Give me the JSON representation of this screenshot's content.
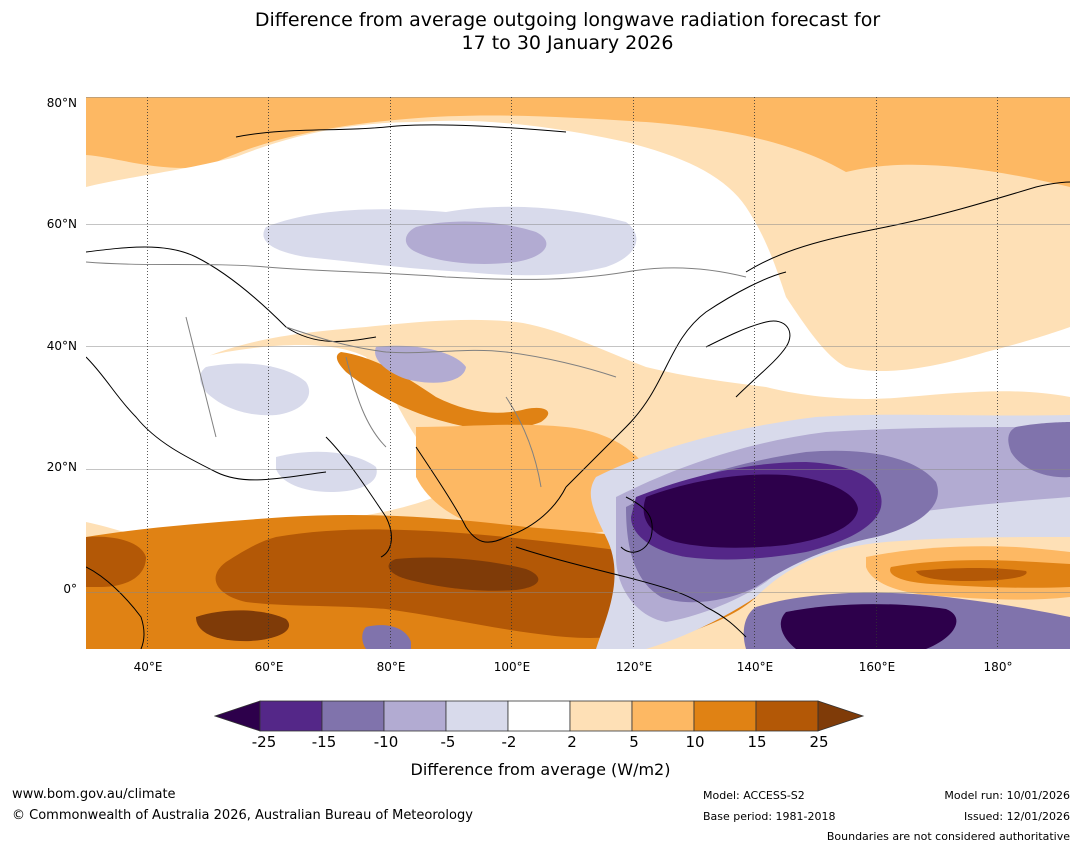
{
  "title": {
    "line1": "Difference from average outgoing longwave radiation forecast for",
    "line2": "17 to 30 January 2026"
  },
  "map": {
    "lat_labels": [
      "80°N",
      "60°N",
      "40°N",
      "20°N",
      "0°"
    ],
    "lon_labels": [
      "40°E",
      "60°E",
      "80°E",
      "100°E",
      "120°E",
      "140°E",
      "160°E",
      "180°"
    ],
    "lat_range": [
      -10,
      80
    ],
    "lon_range": [
      30,
      192
    ],
    "land_color": "#ffffff",
    "coast_color": "#000000",
    "border_color": "#808080"
  },
  "legend": {
    "ticks": [
      "-25",
      "-15",
      "-10",
      "-5",
      "-2",
      "2",
      "5",
      "10",
      "15",
      "25"
    ],
    "colors": [
      "#2d004b",
      "#542788",
      "#8073ac",
      "#b2abd2",
      "#d8daeb",
      "#ffffff",
      "#fee0b6",
      "#fdb863",
      "#e08214",
      "#b35806",
      "#7f3b08"
    ],
    "label": "Difference from average (W/m2)"
  },
  "footer": {
    "website": "www.bom.gov.au/climate",
    "copyright": "© Commonwealth of Australia 2026, Australian Bureau of Meteorology",
    "model": "Model: ACCESS-S2",
    "base_period": "Base period: 1981-2018",
    "model_run": "Model run: 10/01/2026",
    "issued": "Issued: 12/01/2026",
    "disclaimer": "Boundaries are not considered authoritative"
  }
}
